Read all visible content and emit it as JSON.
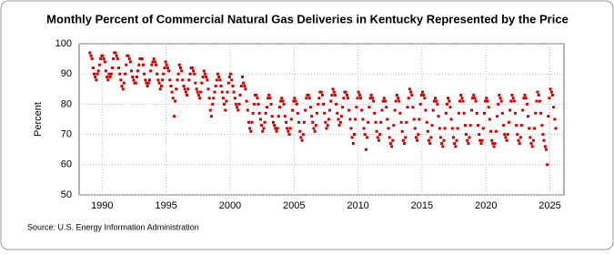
{
  "chart_data": {
    "type": "scatter",
    "title": "Monthly Percent of Commercial Natural Gas Deliveries in Kentucky Represented by the Price",
    "y_label": "Percent",
    "source": "Source: U.S. Energy Information Administration",
    "color": "#cc0000",
    "grid": true,
    "xlim": [
      1988.2,
      2026.1
    ],
    "xticks": [
      1990,
      1995,
      2000,
      2005,
      2010,
      2015,
      2020,
      2025
    ],
    "ylim": [
      50,
      100
    ],
    "yticks": [
      50,
      60,
      70,
      80,
      90,
      100
    ],
    "x": [
      1989.04,
      1989.13,
      1989.21,
      1989.29,
      1989.38,
      1989.46,
      1989.54,
      1989.63,
      1989.71,
      1989.79,
      1989.88,
      1989.96,
      1990.04,
      1990.13,
      1990.21,
      1990.29,
      1990.38,
      1990.46,
      1990.54,
      1990.63,
      1990.71,
      1990.79,
      1990.88,
      1990.96,
      1991.04,
      1991.13,
      1991.21,
      1991.29,
      1991.38,
      1991.46,
      1991.54,
      1991.63,
      1991.71,
      1991.79,
      1991.88,
      1991.96,
      1992.04,
      1992.13,
      1992.21,
      1992.29,
      1992.38,
      1992.46,
      1992.54,
      1992.63,
      1992.71,
      1992.79,
      1992.88,
      1992.96,
      1993.04,
      1993.13,
      1993.21,
      1993.29,
      1993.38,
      1993.46,
      1993.54,
      1993.63,
      1993.71,
      1993.79,
      1993.88,
      1993.96,
      1994.04,
      1994.13,
      1994.21,
      1994.29,
      1994.38,
      1994.46,
      1994.54,
      1994.63,
      1994.71,
      1994.79,
      1994.88,
      1994.96,
      1995.04,
      1995.13,
      1995.21,
      1995.29,
      1995.38,
      1995.46,
      1995.54,
      1995.63,
      1995.71,
      1995.79,
      1995.88,
      1995.96,
      1996.04,
      1996.13,
      1996.21,
      1996.29,
      1996.38,
      1996.46,
      1996.54,
      1996.63,
      1996.71,
      1996.79,
      1996.88,
      1996.96,
      1997.04,
      1997.13,
      1997.21,
      1997.29,
      1997.38,
      1997.46,
      1997.54,
      1997.63,
      1997.71,
      1997.79,
      1997.88,
      1997.96,
      1998.04,
      1998.13,
      1998.21,
      1998.29,
      1998.38,
      1998.46,
      1998.54,
      1998.63,
      1998.71,
      1998.79,
      1998.88,
      1998.96,
      1999.04,
      1999.13,
      1999.21,
      1999.29,
      1999.38,
      1999.46,
      1999.54,
      1999.63,
      1999.71,
      1999.79,
      1999.88,
      1999.96,
      2000.04,
      2000.13,
      2000.21,
      2000.29,
      2000.38,
      2000.46,
      2000.54,
      2000.63,
      2000.71,
      2000.79,
      2000.88,
      2000.96,
      2001.04,
      2001.13,
      2001.21,
      2001.29,
      2001.38,
      2001.46,
      2001.54,
      2001.63,
      2001.71,
      2001.79,
      2001.88,
      2001.96,
      2002.04,
      2002.13,
      2002.21,
      2002.29,
      2002.38,
      2002.46,
      2002.54,
      2002.63,
      2002.71,
      2002.79,
      2002.88,
      2002.96,
      2003.04,
      2003.13,
      2003.21,
      2003.29,
      2003.38,
      2003.46,
      2003.54,
      2003.63,
      2003.71,
      2003.79,
      2003.88,
      2003.96,
      2004.04,
      2004.13,
      2004.21,
      2004.29,
      2004.38,
      2004.46,
      2004.54,
      2004.63,
      2004.71,
      2004.79,
      2004.88,
      2004.96,
      2005.04,
      2005.13,
      2005.21,
      2005.29,
      2005.38,
      2005.46,
      2005.54,
      2005.63,
      2005.71,
      2005.79,
      2005.88,
      2005.96,
      2006.04,
      2006.13,
      2006.21,
      2006.29,
      2006.38,
      2006.46,
      2006.54,
      2006.63,
      2006.71,
      2006.79,
      2006.88,
      2006.96,
      2007.04,
      2007.13,
      2007.21,
      2007.29,
      2007.38,
      2007.46,
      2007.54,
      2007.63,
      2007.71,
      2007.79,
      2007.88,
      2007.96,
      2008.04,
      2008.13,
      2008.21,
      2008.29,
      2008.38,
      2008.46,
      2008.54,
      2008.63,
      2008.71,
      2008.79,
      2008.88,
      2008.96,
      2009.04,
      2009.13,
      2009.21,
      2009.29,
      2009.38,
      2009.46,
      2009.54,
      2009.63,
      2009.71,
      2009.79,
      2009.88,
      2009.96,
      2010.04,
      2010.13,
      2010.21,
      2010.29,
      2010.38,
      2010.46,
      2010.54,
      2010.63,
      2010.71,
      2010.79,
      2010.88,
      2010.96,
      2011.04,
      2011.13,
      2011.21,
      2011.29,
      2011.38,
      2011.46,
      2011.54,
      2011.63,
      2011.71,
      2011.79,
      2011.88,
      2011.96,
      2012.04,
      2012.13,
      2012.21,
      2012.29,
      2012.38,
      2012.46,
      2012.54,
      2012.63,
      2012.71,
      2012.79,
      2012.88,
      2012.96,
      2013.04,
      2013.13,
      2013.21,
      2013.29,
      2013.38,
      2013.46,
      2013.54,
      2013.63,
      2013.71,
      2013.79,
      2013.88,
      2013.96,
      2014.04,
      2014.13,
      2014.21,
      2014.29,
      2014.38,
      2014.46,
      2014.54,
      2014.63,
      2014.71,
      2014.79,
      2014.88,
      2014.96,
      2015.04,
      2015.13,
      2015.21,
      2015.29,
      2015.38,
      2015.46,
      2015.54,
      2015.63,
      2015.71,
      2015.79,
      2015.88,
      2015.96,
      2016.04,
      2016.13,
      2016.21,
      2016.29,
      2016.38,
      2016.46,
      2016.54,
      2016.63,
      2016.71,
      2016.79,
      2016.88,
      2016.96,
      2017.04,
      2017.13,
      2017.21,
      2017.29,
      2017.38,
      2017.46,
      2017.54,
      2017.63,
      2017.71,
      2017.79,
      2017.88,
      2017.96,
      2018.04,
      2018.13,
      2018.21,
      2018.29,
      2018.38,
      2018.46,
      2018.54,
      2018.63,
      2018.71,
      2018.79,
      2018.88,
      2018.96,
      2019.04,
      2019.13,
      2019.21,
      2019.29,
      2019.38,
      2019.46,
      2019.54,
      2019.63,
      2019.71,
      2019.79,
      2019.88,
      2019.96,
      2020.04,
      2020.13,
      2020.21,
      2020.29,
      2020.38,
      2020.46,
      2020.54,
      2020.63,
      2020.71,
      2020.79,
      2020.88,
      2020.96,
      2021.04,
      2021.13,
      2021.21,
      2021.29,
      2021.38,
      2021.46,
      2021.54,
      2021.63,
      2021.71,
      2021.79,
      2021.88,
      2021.96,
      2022.04,
      2022.13,
      2022.21,
      2022.29,
      2022.38,
      2022.46,
      2022.54,
      2022.63,
      2022.71,
      2022.79,
      2022.88,
      2022.96,
      2023.04,
      2023.13,
      2023.21,
      2023.29,
      2023.38,
      2023.46,
      2023.54,
      2023.63,
      2023.71,
      2023.79,
      2023.88,
      2023.96,
      2024.04,
      2024.13,
      2024.21,
      2024.29,
      2024.38,
      2024.46,
      2024.54,
      2024.63,
      2024.71,
      2024.79,
      2024.88,
      2024.96,
      2025.04,
      2025.13,
      2025.21,
      2025.29,
      2025.38,
      2025.46
    ],
    "values": [
      97,
      96,
      95,
      92,
      90,
      89,
      88,
      90,
      91,
      93,
      95,
      96,
      96,
      95,
      94,
      91,
      89,
      88,
      90,
      89,
      90,
      92,
      95,
      97,
      97,
      96,
      95,
      92,
      90,
      88,
      86,
      85,
      87,
      90,
      93,
      96,
      96,
      95,
      94,
      91,
      89,
      88,
      87,
      87,
      89,
      91,
      93,
      95,
      95,
      95,
      93,
      90,
      88,
      87,
      86,
      87,
      88,
      91,
      93,
      94,
      95,
      94,
      93,
      90,
      88,
      87,
      85,
      86,
      88,
      90,
      92,
      94,
      93,
      92,
      91,
      88,
      86,
      84,
      82,
      76,
      81,
      85,
      88,
      90,
      93,
      92,
      91,
      88,
      86,
      85,
      84,
      83,
      85,
      88,
      90,
      92,
      92,
      91,
      90,
      87,
      85,
      84,
      83,
      82,
      84,
      87,
      89,
      91,
      90,
      89,
      88,
      85,
      82,
      78,
      76,
      80,
      82,
      84,
      86,
      88,
      90,
      89,
      88,
      86,
      84,
      82,
      80,
      78,
      81,
      84,
      87,
      89,
      90,
      88,
      86,
      84,
      82,
      80,
      79,
      78,
      80,
      83,
      86,
      89,
      87,
      86,
      85,
      81,
      78,
      74,
      72,
      71,
      74,
      77,
      80,
      83,
      83,
      82,
      80,
      77,
      75,
      73,
      71,
      72,
      74,
      77,
      79,
      82,
      83,
      82,
      80,
      76,
      74,
      73,
      72,
      71,
      72,
      76,
      79,
      81,
      82,
      81,
      80,
      76,
      74,
      72,
      71,
      70,
      72,
      75,
      78,
      81,
      82,
      81,
      80,
      77,
      74,
      71,
      69,
      68,
      70,
      74,
      78,
      82,
      83,
      83,
      82,
      79,
      76,
      74,
      72,
      71,
      73,
      77,
      80,
      82,
      84,
      84,
      83,
      80,
      77,
      74,
      72,
      73,
      75,
      78,
      81,
      83,
      85,
      84,
      83,
      80,
      77,
      75,
      73,
      74,
      76,
      79,
      82,
      84,
      84,
      83,
      82,
      78,
      75,
      72,
      69,
      67,
      70,
      75,
      79,
      82,
      84,
      83,
      82,
      78,
      75,
      72,
      70,
      65,
      69,
      74,
      79,
      82,
      83,
      82,
      81,
      77,
      74,
      71,
      69,
      68,
      70,
      74,
      78,
      81,
      82,
      81,
      79,
      75,
      72,
      69,
      67,
      66,
      68,
      73,
      78,
      81,
      83,
      82,
      81,
      77,
      74,
      71,
      68,
      67,
      69,
      74,
      79,
      82,
      85,
      84,
      83,
      79,
      75,
      72,
      69,
      68,
      70,
      75,
      80,
      83,
      84,
      83,
      82,
      78,
      74,
      71,
      68,
      67,
      69,
      73,
      78,
      81,
      82,
      81,
      80,
      76,
      72,
      69,
      67,
      66,
      68,
      72,
      77,
      80,
      82,
      81,
      79,
      75,
      72,
      69,
      67,
      66,
      68,
      72,
      77,
      81,
      83,
      82,
      81,
      77,
      73,
      70,
      68,
      67,
      69,
      73,
      78,
      82,
      83,
      82,
      81,
      77,
      73,
      70,
      68,
      67,
      68,
      72,
      77,
      81,
      82,
      81,
      79,
      75,
      71,
      68,
      67,
      66,
      67,
      71,
      76,
      80,
      83,
      82,
      81,
      77,
      73,
      70,
      69,
      68,
      70,
      74,
      78,
      81,
      83,
      82,
      81,
      77,
      73,
      70,
      68,
      67,
      69,
      73,
      78,
      82,
      83,
      82,
      80,
      76,
      72,
      69,
      67,
      66,
      68,
      72,
      77,
      81,
      84,
      83,
      81,
      77,
      73,
      70,
      68,
      66,
      65,
      60,
      76,
      82,
      85,
      84,
      83,
      79,
      75,
      72
    ]
  }
}
